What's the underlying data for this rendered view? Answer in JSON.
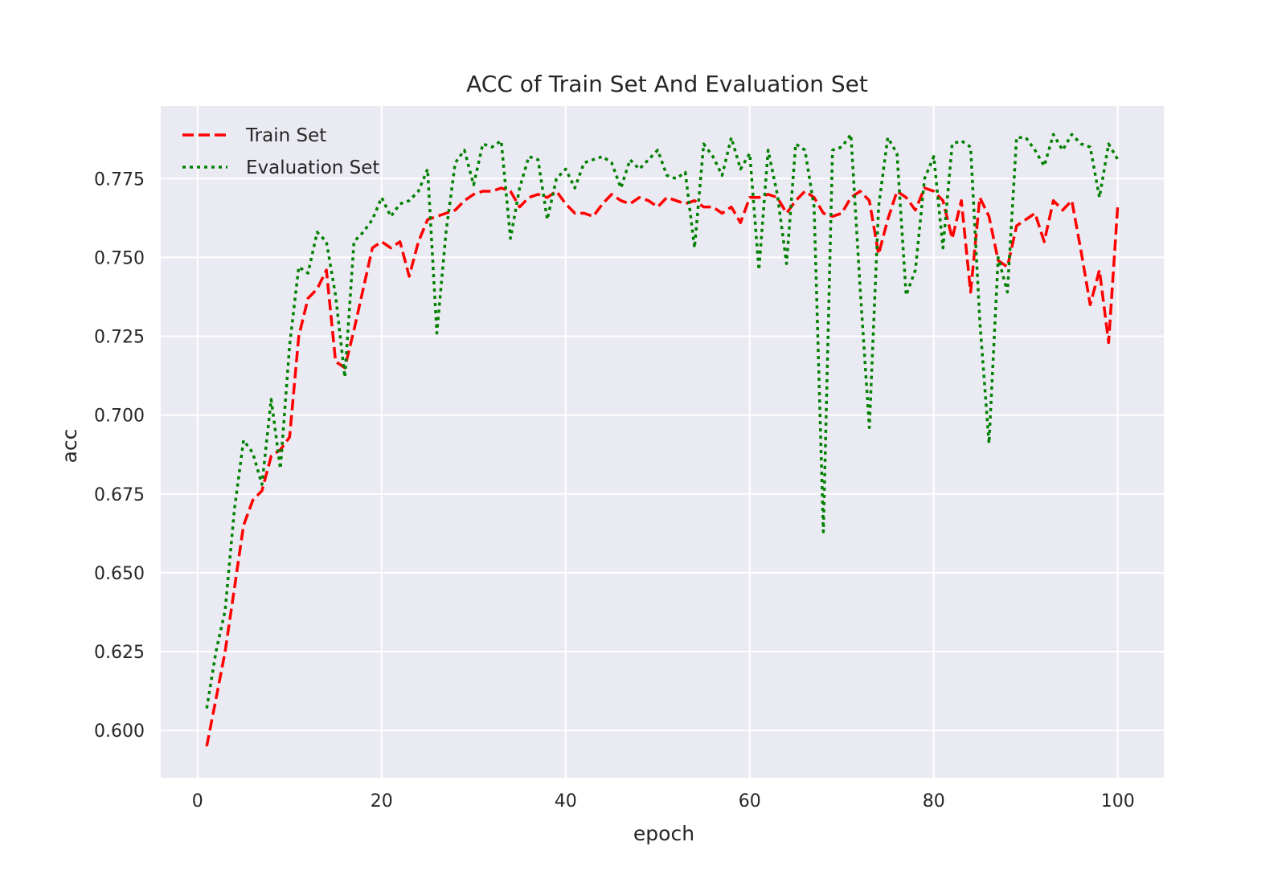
{
  "chart_data": {
    "type": "line",
    "title": "ACC of Train Set And Evaluation Set",
    "xlabel": "epoch",
    "ylabel": "acc",
    "xlim": [
      -4,
      105
    ],
    "ylim": [
      0.585,
      0.798
    ],
    "xticks": [
      0,
      20,
      40,
      60,
      80,
      100
    ],
    "xtick_labels": [
      "0",
      "20",
      "40",
      "60",
      "80",
      "100"
    ],
    "yticks": [
      0.6,
      0.625,
      0.65,
      0.675,
      0.7,
      0.725,
      0.75,
      0.775
    ],
    "ytick_labels": [
      "0.600",
      "0.625",
      "0.650",
      "0.675",
      "0.700",
      "0.725",
      "0.750",
      "0.775"
    ],
    "grid": true,
    "legend_position": "upper-left",
    "x": [
      1,
      2,
      3,
      4,
      5,
      6,
      7,
      8,
      9,
      10,
      11,
      12,
      13,
      14,
      15,
      16,
      17,
      18,
      19,
      20,
      21,
      22,
      23,
      24,
      25,
      26,
      27,
      28,
      29,
      30,
      31,
      32,
      33,
      34,
      35,
      36,
      37,
      38,
      39,
      40,
      41,
      42,
      43,
      44,
      45,
      46,
      47,
      48,
      49,
      50,
      51,
      52,
      53,
      54,
      55,
      56,
      57,
      58,
      59,
      60,
      61,
      62,
      63,
      64,
      65,
      66,
      67,
      68,
      69,
      70,
      71,
      72,
      73,
      74,
      75,
      76,
      77,
      78,
      79,
      80,
      81,
      82,
      83,
      84,
      85,
      86,
      87,
      88,
      89,
      90,
      91,
      92,
      93,
      94,
      95,
      96,
      97,
      98,
      99,
      100
    ],
    "series": [
      {
        "name": "Train Set",
        "color": "#ff0000",
        "style": "dashed",
        "values": [
          0.595,
          0.61,
          0.625,
          0.645,
          0.665,
          0.673,
          0.676,
          0.687,
          0.689,
          0.693,
          0.725,
          0.737,
          0.74,
          0.746,
          0.717,
          0.715,
          0.727,
          0.74,
          0.753,
          0.755,
          0.753,
          0.755,
          0.744,
          0.755,
          0.762,
          0.763,
          0.764,
          0.765,
          0.768,
          0.77,
          0.771,
          0.771,
          0.772,
          0.771,
          0.766,
          0.769,
          0.77,
          0.769,
          0.771,
          0.767,
          0.764,
          0.764,
          0.763,
          0.767,
          0.77,
          0.768,
          0.767,
          0.769,
          0.768,
          0.766,
          0.769,
          0.768,
          0.767,
          0.768,
          0.766,
          0.766,
          0.764,
          0.766,
          0.761,
          0.769,
          0.769,
          0.77,
          0.769,
          0.764,
          0.768,
          0.771,
          0.769,
          0.764,
          0.763,
          0.764,
          0.769,
          0.771,
          0.768,
          0.751,
          0.762,
          0.771,
          0.769,
          0.765,
          0.772,
          0.771,
          0.768,
          0.756,
          0.768,
          0.739,
          0.769,
          0.763,
          0.749,
          0.747,
          0.76,
          0.762,
          0.764,
          0.755,
          0.768,
          0.765,
          0.768,
          0.752,
          0.735,
          0.746,
          0.723,
          0.767
        ]
      },
      {
        "name": "Evaluation Set",
        "color": "#008000",
        "style": "dotted",
        "values": [
          0.607,
          0.625,
          0.638,
          0.67,
          0.692,
          0.688,
          0.678,
          0.705,
          0.683,
          0.722,
          0.747,
          0.745,
          0.758,
          0.755,
          0.738,
          0.712,
          0.755,
          0.758,
          0.762,
          0.769,
          0.763,
          0.767,
          0.768,
          0.771,
          0.778,
          0.726,
          0.758,
          0.78,
          0.784,
          0.773,
          0.786,
          0.785,
          0.787,
          0.756,
          0.772,
          0.782,
          0.781,
          0.762,
          0.775,
          0.778,
          0.772,
          0.78,
          0.781,
          0.782,
          0.78,
          0.772,
          0.781,
          0.778,
          0.781,
          0.784,
          0.776,
          0.775,
          0.777,
          0.753,
          0.786,
          0.782,
          0.776,
          0.788,
          0.778,
          0.783,
          0.746,
          0.784,
          0.77,
          0.748,
          0.786,
          0.784,
          0.766,
          0.663,
          0.784,
          0.785,
          0.789,
          0.74,
          0.696,
          0.766,
          0.788,
          0.783,
          0.738,
          0.746,
          0.775,
          0.782,
          0.753,
          0.786,
          0.787,
          0.785,
          0.73,
          0.691,
          0.75,
          0.739,
          0.788,
          0.788,
          0.784,
          0.779,
          0.789,
          0.784,
          0.789,
          0.786,
          0.785,
          0.769,
          0.786,
          0.781
        ]
      }
    ]
  }
}
